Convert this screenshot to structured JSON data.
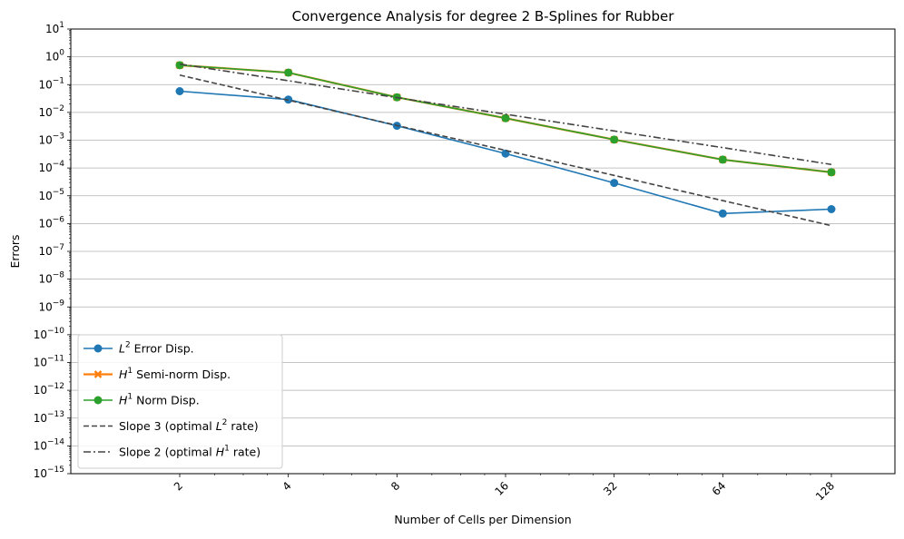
{
  "chart_data": {
    "type": "line",
    "title": "Convergence Analysis for degree 2 B-Splines for Rubber",
    "xlabel": "Number of Cells per Dimension",
    "ylabel": "Errors",
    "x_scale": "log2",
    "y_scale": "log10",
    "x": [
      2,
      4,
      8,
      16,
      32,
      64,
      128
    ],
    "x_tick_labels": [
      "2",
      "4",
      "8",
      "16",
      "32",
      "64",
      "128"
    ],
    "y_tick_exponents": [
      1,
      0,
      -1,
      -2,
      -3,
      -4,
      -5,
      -6,
      -7,
      -8,
      -9,
      -10,
      -11,
      -12,
      -13,
      -14,
      -15
    ],
    "ylim": [
      1e-15,
      10
    ],
    "grid": "y-major",
    "legend_position": "lower-left",
    "series": [
      {
        "name": "Error Disp.",
        "legend_prefix": "L",
        "legend_sup": "2",
        "color": "#1f77b4",
        "marker": "circle",
        "linestyle": "solid",
        "values": [
          0.058,
          0.029,
          0.0033,
          0.00033,
          2.9e-05,
          2.3e-06,
          3.3e-06
        ]
      },
      {
        "name": "Semi-norm Disp.",
        "legend_prefix": "H",
        "legend_sup": "1",
        "color": "#ff7f0e",
        "marker": "x",
        "linestyle": "solid",
        "values": [
          0.5,
          0.27,
          0.035,
          0.0062,
          0.00105,
          0.0002,
          7e-05
        ]
      },
      {
        "name": "Norm Disp.",
        "legend_prefix": "H",
        "legend_sup": "1",
        "color": "#2ca02c",
        "marker": "circle",
        "linestyle": "solid",
        "values": [
          0.5,
          0.27,
          0.035,
          0.0062,
          0.00105,
          0.0002,
          7e-05
        ]
      },
      {
        "name": "Slope 3 (optimal",
        "legend_prefix": "",
        "legend_sup": "2",
        "legend_suffix_pre": "L",
        "legend_suffix_post": "rate)",
        "color": "#444444",
        "marker": "none",
        "linestyle": "dashed",
        "values": [
          0.22,
          0.0275,
          0.0034,
          0.00043,
          5.4e-05,
          6.7e-06,
          8.4e-07
        ]
      },
      {
        "name": "Slope 2 (optimal",
        "legend_prefix": "",
        "legend_sup": "1",
        "legend_suffix_pre": "H",
        "legend_suffix_post": "rate)",
        "color": "#444444",
        "marker": "none",
        "linestyle": "dashdot",
        "values": [
          0.55,
          0.138,
          0.034,
          0.0086,
          0.00215,
          0.00054,
          0.000134
        ]
      }
    ]
  }
}
